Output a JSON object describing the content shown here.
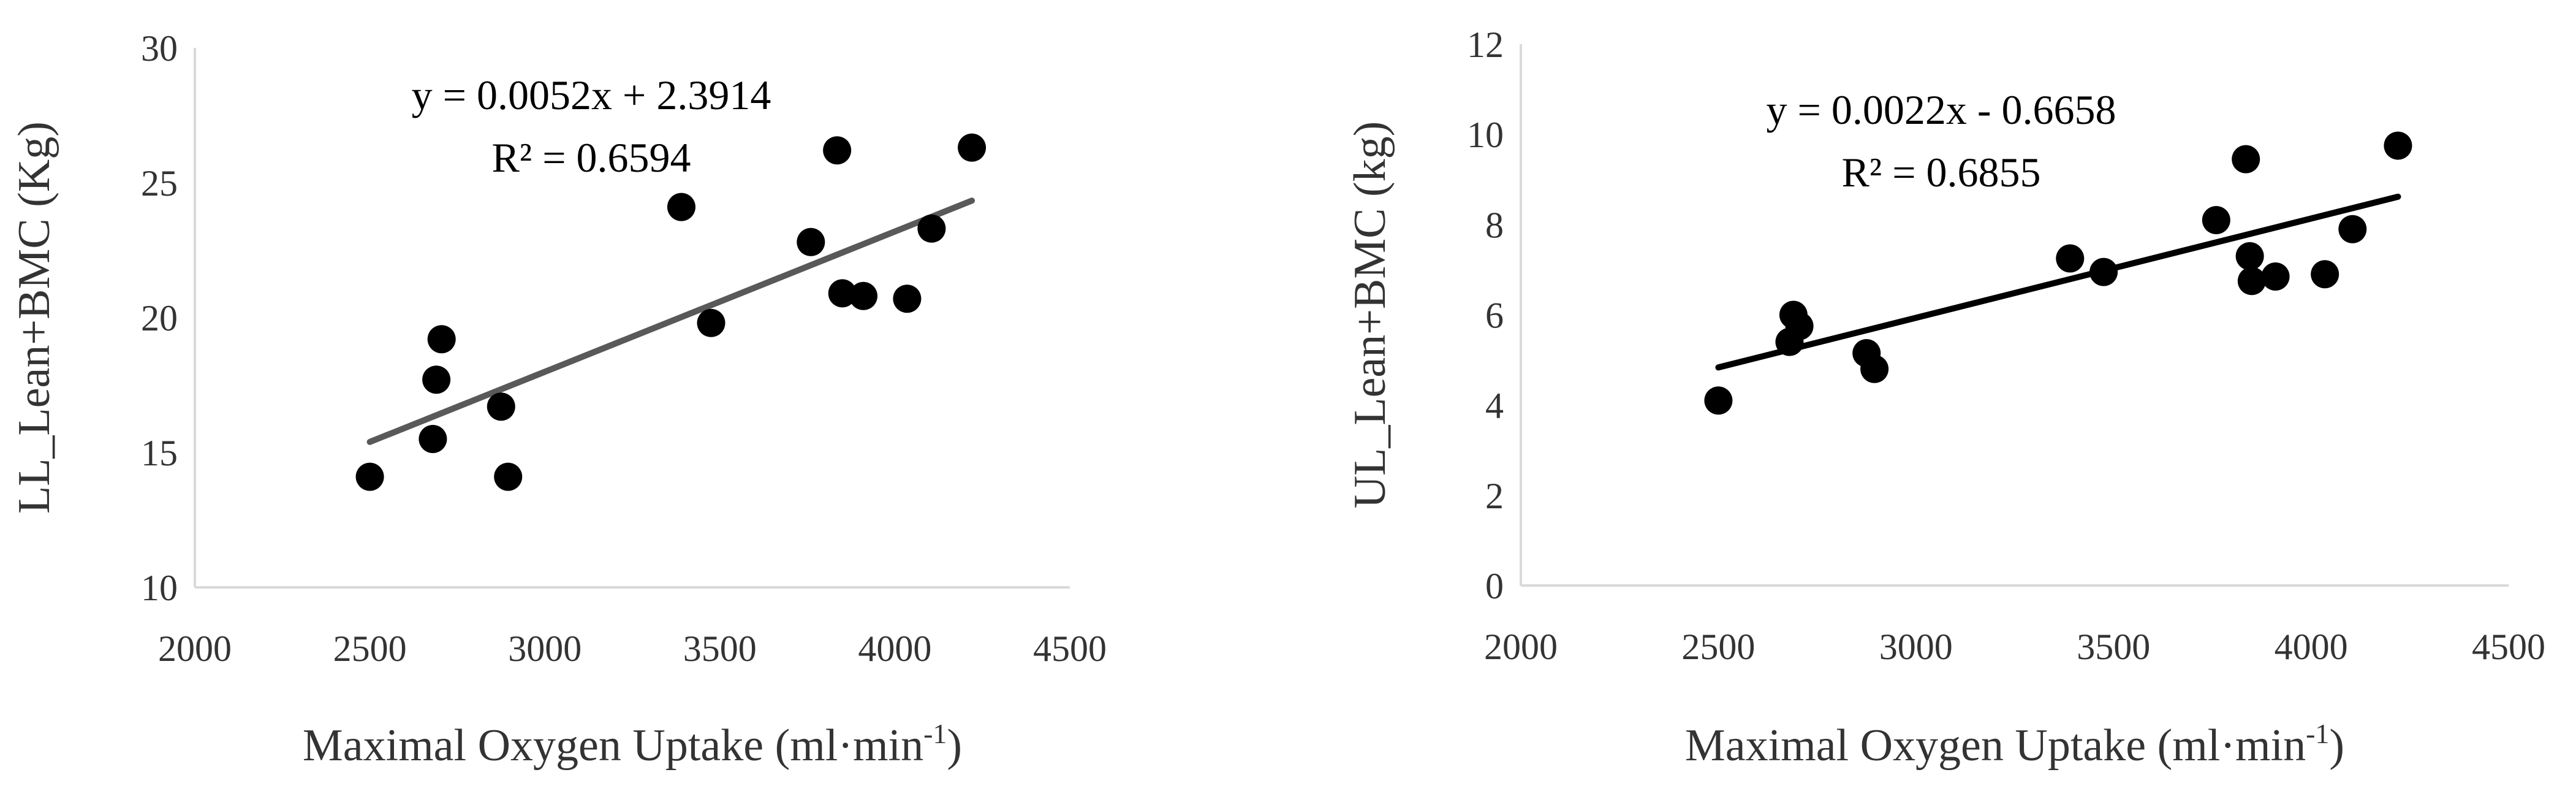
{
  "chart_data": [
    {
      "type": "scatter",
      "xlabel": "Maximal Oxygen Uptake (ml·min",
      "xlabel_sup": "-1",
      "xlabel_end": ")",
      "ylabel": "LL_Lean+BMC (Kg)",
      "xlim": [
        2000,
        4500
      ],
      "ylim": [
        10,
        30
      ],
      "xticks": [
        2000,
        2500,
        3000,
        3500,
        4000,
        4500
      ],
      "yticks": [
        10,
        15,
        20,
        25,
        30
      ],
      "xtick_labels": [
        "2000",
        "2500",
        "3000",
        "3500",
        "4000",
        "4500"
      ],
      "ytick_labels": [
        "10",
        "15",
        "20",
        "25",
        "30"
      ],
      "point_color": "#000000",
      "trendline_color": "#595959",
      "equation": "y = 0.0052x + 2.3914",
      "r_squared": "R² = 0.6594",
      "trendline": {
        "slope": 0.0052,
        "intercept": 2.3914,
        "x_start": 2500,
        "x_end": 4220
      },
      "points": [
        {
          "x": 2500,
          "y": 14.1
        },
        {
          "x": 2680,
          "y": 15.5
        },
        {
          "x": 2690,
          "y": 17.7
        },
        {
          "x": 2705,
          "y": 19.2
        },
        {
          "x": 2875,
          "y": 16.7
        },
        {
          "x": 2895,
          "y": 14.1
        },
        {
          "x": 3390,
          "y": 24.1
        },
        {
          "x": 3475,
          "y": 19.8
        },
        {
          "x": 3760,
          "y": 22.8
        },
        {
          "x": 3835,
          "y": 26.2
        },
        {
          "x": 3850,
          "y": 20.9
        },
        {
          "x": 3910,
          "y": 20.8
        },
        {
          "x": 4035,
          "y": 20.7
        },
        {
          "x": 4105,
          "y": 23.3
        },
        {
          "x": 4220,
          "y": 26.3
        }
      ]
    },
    {
      "type": "scatter",
      "xlabel": "Maximal Oxygen Uptake (ml·min",
      "xlabel_sup": "-1",
      "xlabel_end": ")",
      "ylabel": "UL_Lean+BMC (kg)",
      "xlim": [
        2000,
        4500
      ],
      "ylim": [
        0,
        12
      ],
      "xticks": [
        2000,
        2500,
        3000,
        3500,
        4000,
        4500
      ],
      "yticks": [
        0,
        2,
        4,
        6,
        8,
        10,
        12
      ],
      "xtick_labels": [
        "2000",
        "2500",
        "3000",
        "3500",
        "4000",
        "4500"
      ],
      "ytick_labels": [
        "0",
        "2",
        "4",
        "6",
        "8",
        "10",
        "12"
      ],
      "point_color": "#000000",
      "trendline_color": "#000000",
      "equation": "y = 0.0022x - 0.6658",
      "r_squared": "R² = 0.6855",
      "trendline": {
        "slope": 0.0022,
        "intercept": -0.6658,
        "x_start": 2500,
        "x_end": 4220
      },
      "points": [
        {
          "x": 2500,
          "y": 4.1
        },
        {
          "x": 2680,
          "y": 5.4
        },
        {
          "x": 2690,
          "y": 6.0
        },
        {
          "x": 2705,
          "y": 5.75
        },
        {
          "x": 2875,
          "y": 5.15
        },
        {
          "x": 2895,
          "y": 4.8
        },
        {
          "x": 3390,
          "y": 7.25
        },
        {
          "x": 3475,
          "y": 6.95
        },
        {
          "x": 3760,
          "y": 8.1
        },
        {
          "x": 3835,
          "y": 9.45
        },
        {
          "x": 3845,
          "y": 7.3
        },
        {
          "x": 3850,
          "y": 6.75
        },
        {
          "x": 3910,
          "y": 6.85
        },
        {
          "x": 4035,
          "y": 6.9
        },
        {
          "x": 4105,
          "y": 7.9
        },
        {
          "x": 4220,
          "y": 9.75
        }
      ]
    }
  ]
}
